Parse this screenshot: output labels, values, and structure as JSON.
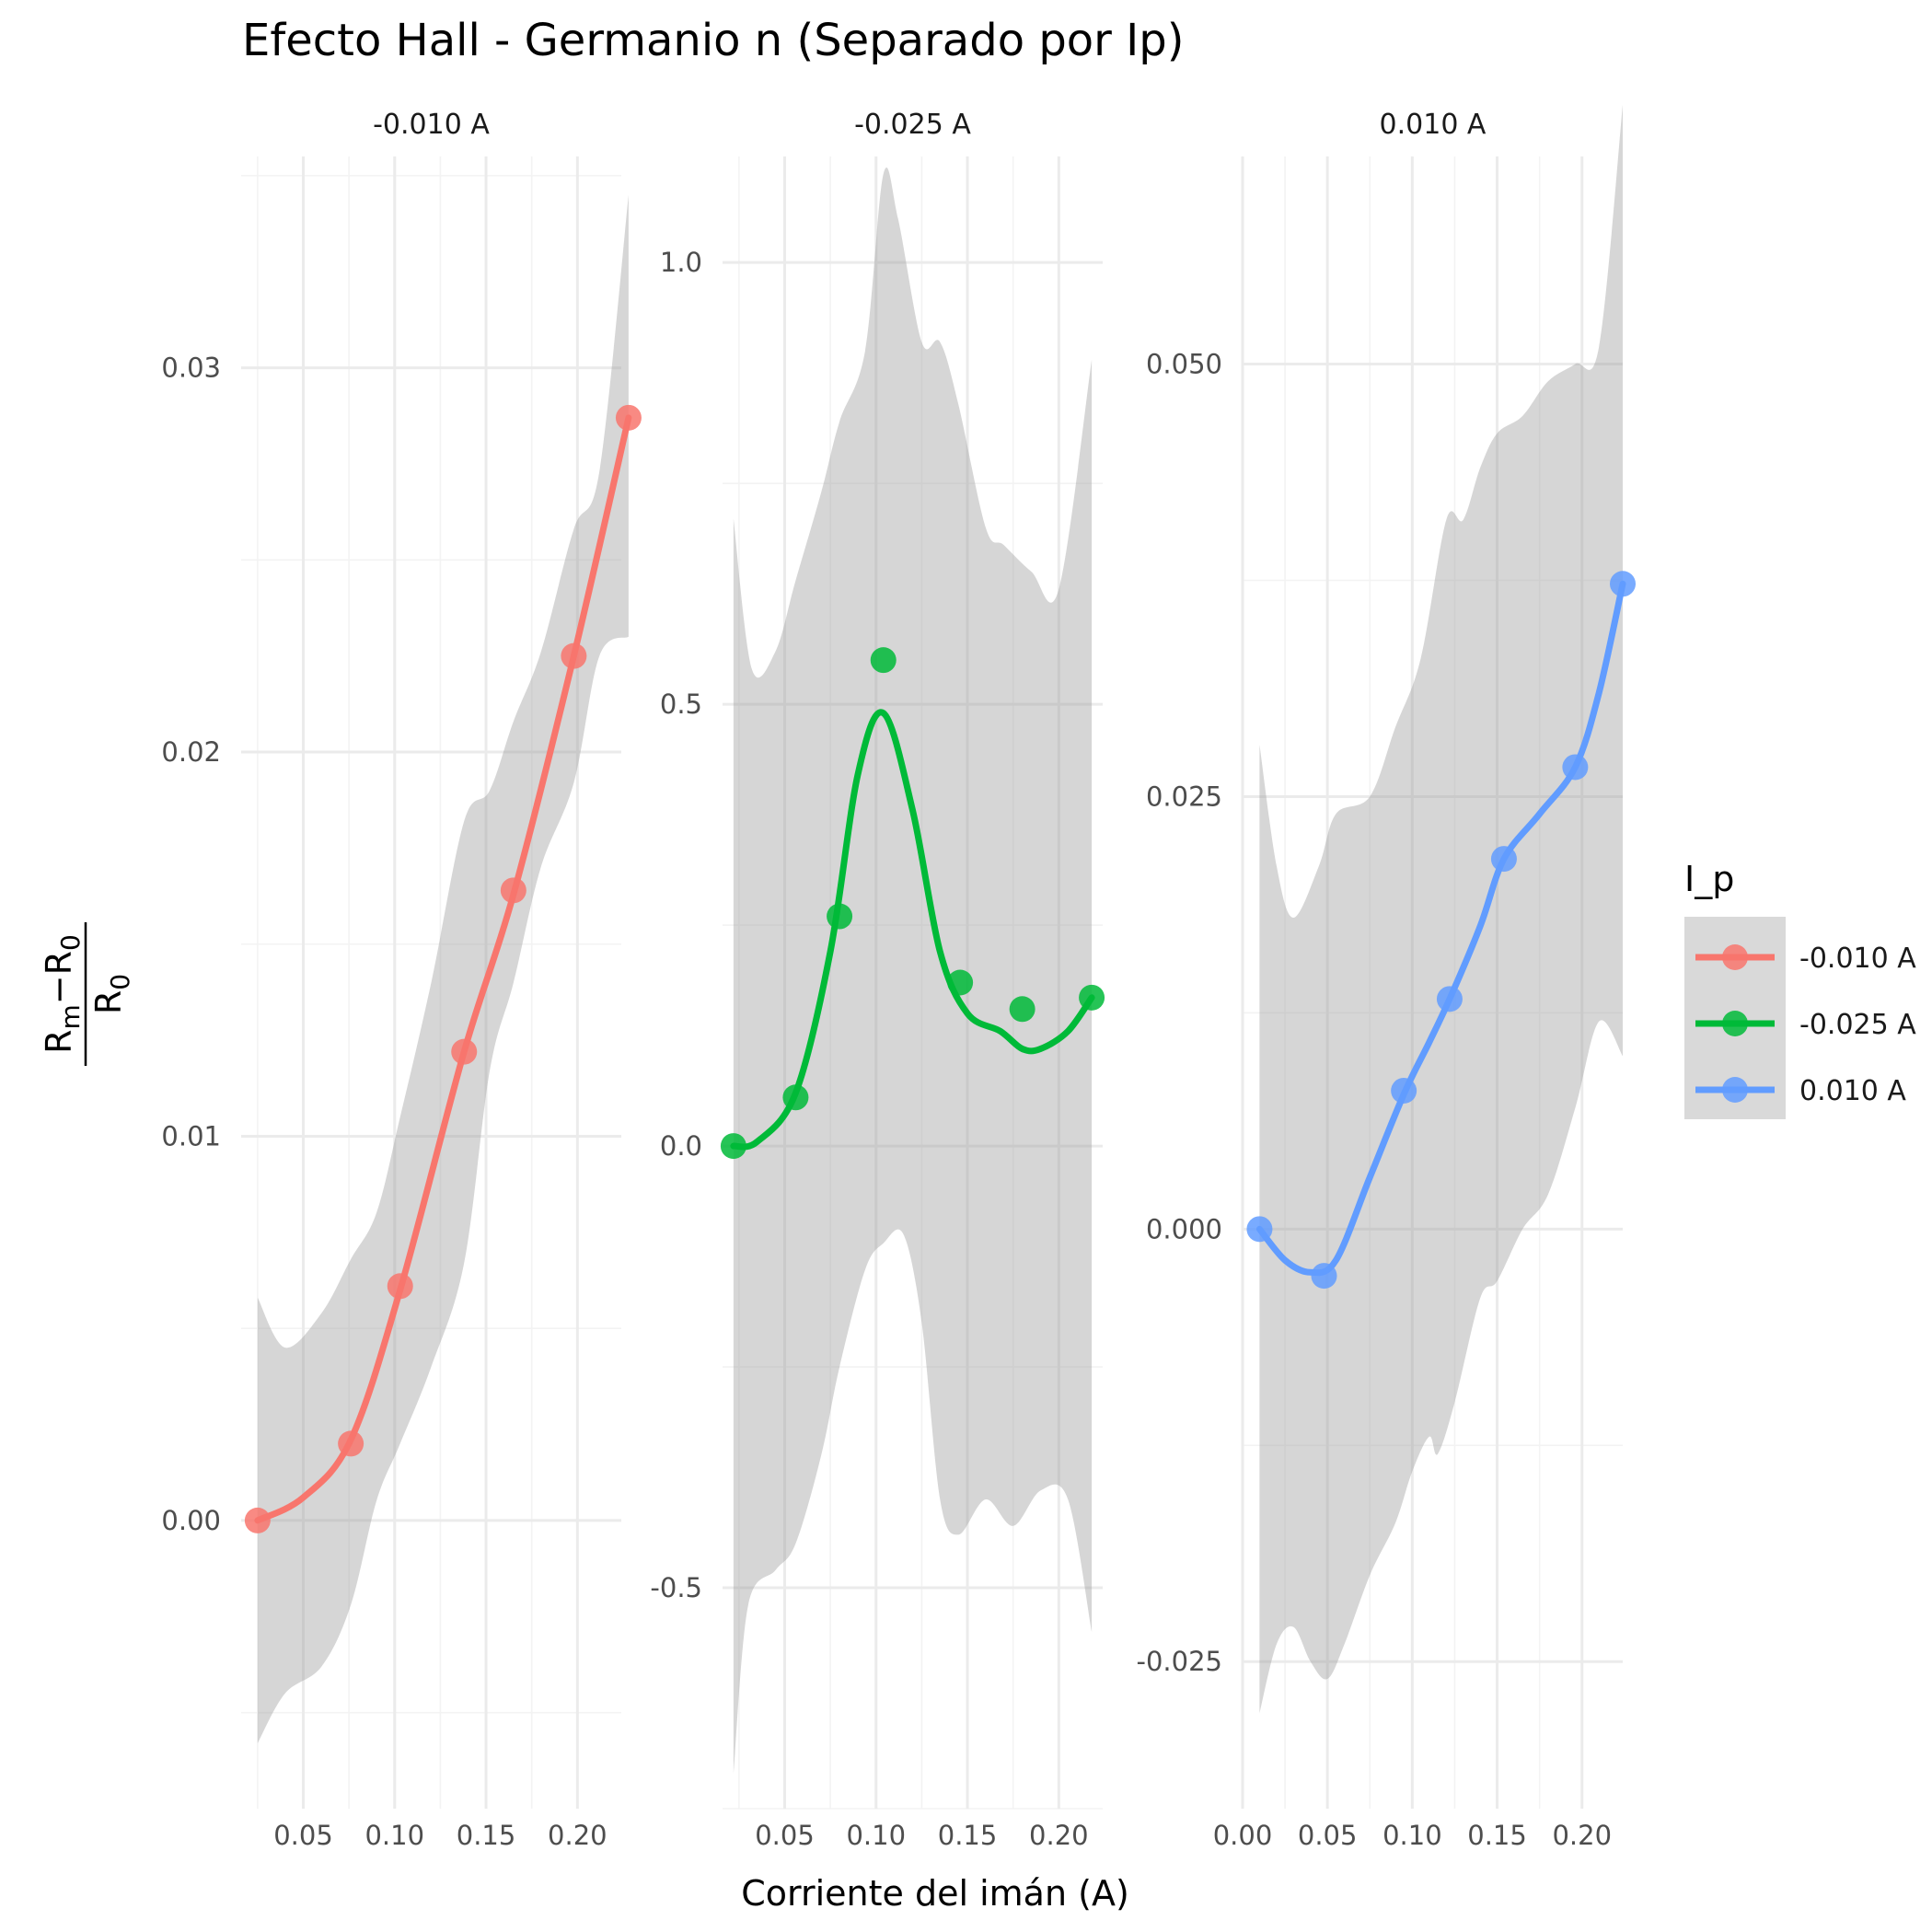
{
  "chart_data": {
    "type": "line",
    "title": "Efecto Hall - Germanio n (Separado por Ip)",
    "xlabel": "Corriente del imán (A)",
    "ylabel": {
      "numerator_main": "R",
      "numerator_sub1": "m",
      "numerator_minus": "−R",
      "numerator_sub2": "0",
      "denominator_main": "R",
      "denominator_sub": "0"
    },
    "legend": {
      "title": "I_p",
      "position": "right",
      "entries": [
        {
          "label": "-0.010 A",
          "color": "#F8766D"
        },
        {
          "label": "-0.025 A",
          "color": "#00BA38"
        },
        {
          "label": "0.010 A",
          "color": "#619CFF"
        }
      ]
    },
    "grid": true,
    "facets": [
      {
        "strip": "-0.010 A",
        "color": "#F8766D",
        "xlim": [
          0.016,
          0.224
        ],
        "ylim": [
          -0.0075,
          0.0355
        ],
        "x_ticks": [
          0.05,
          0.1,
          0.15,
          0.2
        ],
        "x_tick_labels": [
          "0.05",
          "0.10",
          "0.15",
          "0.20"
        ],
        "y_ticks": [
          0.0,
          0.01,
          0.02,
          0.03
        ],
        "y_tick_labels": [
          "0.00",
          "0.01",
          "0.02",
          "0.03"
        ],
        "points": [
          [
            0.025,
            0.0
          ],
          [
            0.076,
            0.002
          ],
          [
            0.103,
            0.0061
          ],
          [
            0.138,
            0.0122
          ],
          [
            0.165,
            0.0164
          ],
          [
            0.198,
            0.0225
          ],
          [
            0.228,
            0.0287
          ]
        ],
        "smooth": [
          [
            0.025,
            0.0
          ],
          [
            0.05,
            0.0006
          ],
          [
            0.076,
            0.0021
          ],
          [
            0.103,
            0.006
          ],
          [
            0.138,
            0.0122
          ],
          [
            0.165,
            0.0163
          ],
          [
            0.198,
            0.0225
          ],
          [
            0.228,
            0.0287
          ]
        ],
        "band_upper": [
          [
            0.025,
            0.0058
          ],
          [
            0.04,
            0.0045
          ],
          [
            0.06,
            0.0054
          ],
          [
            0.076,
            0.0068
          ],
          [
            0.09,
            0.008
          ],
          [
            0.103,
            0.0105
          ],
          [
            0.12,
            0.014
          ],
          [
            0.138,
            0.0182
          ],
          [
            0.152,
            0.019
          ],
          [
            0.165,
            0.0208
          ],
          [
            0.18,
            0.0226
          ],
          [
            0.198,
            0.0258
          ],
          [
            0.212,
            0.0273
          ],
          [
            0.228,
            0.0345
          ]
        ],
        "band_lower": [
          [
            0.025,
            -0.0058
          ],
          [
            0.04,
            -0.0045
          ],
          [
            0.06,
            -0.0038
          ],
          [
            0.076,
            -0.0022
          ],
          [
            0.09,
            0.0005
          ],
          [
            0.103,
            0.002
          ],
          [
            0.12,
            0.004
          ],
          [
            0.138,
            0.0067
          ],
          [
            0.152,
            0.0117
          ],
          [
            0.165,
            0.014
          ],
          [
            0.18,
            0.017
          ],
          [
            0.198,
            0.0192
          ],
          [
            0.212,
            0.0225
          ],
          [
            0.228,
            0.023
          ]
        ]
      },
      {
        "strip": "-0.025 A",
        "color": "#00BA38",
        "xlim": [
          0.016,
          0.224
        ],
        "ylim": [
          -0.75,
          1.12
        ],
        "x_ticks": [
          0.05,
          0.1,
          0.15,
          0.2
        ],
        "x_tick_labels": [
          "0.05",
          "0.10",
          "0.15",
          "0.20"
        ],
        "y_ticks": [
          -0.5,
          0.0,
          0.5,
          1.0
        ],
        "y_tick_labels": [
          "-0.5",
          "0.0",
          "0.5",
          "1.0"
        ],
        "points": [
          [
            0.022,
            0.0
          ],
          [
            0.056,
            0.055
          ],
          [
            0.08,
            0.26
          ],
          [
            0.104,
            0.55
          ],
          [
            0.146,
            0.185
          ],
          [
            0.18,
            0.155
          ],
          [
            0.218,
            0.168
          ]
        ],
        "smooth": [
          [
            0.022,
            0.0
          ],
          [
            0.035,
            0.005
          ],
          [
            0.056,
            0.06
          ],
          [
            0.075,
            0.22
          ],
          [
            0.09,
            0.42
          ],
          [
            0.104,
            0.49
          ],
          [
            0.12,
            0.38
          ],
          [
            0.135,
            0.22
          ],
          [
            0.15,
            0.15
          ],
          [
            0.168,
            0.13
          ],
          [
            0.18,
            0.11
          ],
          [
            0.19,
            0.11
          ],
          [
            0.205,
            0.13
          ],
          [
            0.218,
            0.168
          ]
        ],
        "band_upper": [
          [
            0.022,
            0.71
          ],
          [
            0.032,
            0.54
          ],
          [
            0.045,
            0.56
          ],
          [
            0.056,
            0.64
          ],
          [
            0.07,
            0.74
          ],
          [
            0.08,
            0.82
          ],
          [
            0.094,
            0.9
          ],
          [
            0.104,
            1.1
          ],
          [
            0.112,
            1.05
          ],
          [
            0.125,
            0.91
          ],
          [
            0.135,
            0.91
          ],
          [
            0.145,
            0.84
          ],
          [
            0.16,
            0.7
          ],
          [
            0.17,
            0.68
          ],
          [
            0.185,
            0.65
          ],
          [
            0.2,
            0.63
          ],
          [
            0.218,
            0.89
          ]
        ],
        "band_lower": [
          [
            0.022,
            -0.71
          ],
          [
            0.03,
            -0.52
          ],
          [
            0.045,
            -0.48
          ],
          [
            0.056,
            -0.45
          ],
          [
            0.07,
            -0.35
          ],
          [
            0.08,
            -0.25
          ],
          [
            0.094,
            -0.14
          ],
          [
            0.104,
            -0.11
          ],
          [
            0.115,
            -0.1
          ],
          [
            0.125,
            -0.2
          ],
          [
            0.135,
            -0.4
          ],
          [
            0.145,
            -0.44
          ],
          [
            0.16,
            -0.4
          ],
          [
            0.175,
            -0.43
          ],
          [
            0.19,
            -0.39
          ],
          [
            0.205,
            -0.4
          ],
          [
            0.218,
            -0.55
          ]
        ]
      },
      {
        "strip": "0.010 A",
        "color": "#619CFF",
        "xlim": [
          0.0,
          0.224
        ],
        "ylim": [
          -0.0335,
          0.062
        ],
        "x_ticks": [
          0.0,
          0.05,
          0.1,
          0.15,
          0.2
        ],
        "x_tick_labels": [
          "0.00",
          "0.05",
          "0.10",
          "0.15",
          "0.20"
        ],
        "y_ticks": [
          -0.025,
          0.0,
          0.025,
          0.05
        ],
        "y_tick_labels": [
          "-0.025",
          "0.000",
          "0.025",
          "0.050"
        ],
        "points": [
          [
            0.01,
            0.0
          ],
          [
            0.048,
            -0.0027
          ],
          [
            0.095,
            0.008
          ],
          [
            0.122,
            0.0133
          ],
          [
            0.154,
            0.0214
          ],
          [
            0.196,
            0.0267
          ],
          [
            0.224,
            0.0373
          ]
        ],
        "smooth": [
          [
            0.01,
            0.0
          ],
          [
            0.025,
            -0.0018
          ],
          [
            0.04,
            -0.0025
          ],
          [
            0.055,
            -0.0018
          ],
          [
            0.075,
            0.003
          ],
          [
            0.095,
            0.0078
          ],
          [
            0.11,
            0.0108
          ],
          [
            0.122,
            0.0133
          ],
          [
            0.14,
            0.0175
          ],
          [
            0.154,
            0.0214
          ],
          [
            0.175,
            0.024
          ],
          [
            0.196,
            0.0267
          ],
          [
            0.21,
            0.031
          ],
          [
            0.224,
            0.0373
          ]
        ],
        "band_upper": [
          [
            0.01,
            0.028
          ],
          [
            0.02,
            0.021
          ],
          [
            0.03,
            0.018
          ],
          [
            0.045,
            0.021
          ],
          [
            0.055,
            0.024
          ],
          [
            0.075,
            0.025
          ],
          [
            0.09,
            0.029
          ],
          [
            0.105,
            0.033
          ],
          [
            0.12,
            0.041
          ],
          [
            0.13,
            0.041
          ],
          [
            0.14,
            0.044
          ],
          [
            0.15,
            0.046
          ],
          [
            0.165,
            0.047
          ],
          [
            0.18,
            0.049
          ],
          [
            0.196,
            0.05
          ],
          [
            0.21,
            0.051
          ],
          [
            0.224,
            0.065
          ]
        ],
        "band_lower": [
          [
            0.01,
            -0.028
          ],
          [
            0.02,
            -0.024
          ],
          [
            0.03,
            -0.023
          ],
          [
            0.04,
            -0.025
          ],
          [
            0.05,
            -0.026
          ],
          [
            0.06,
            -0.024
          ],
          [
            0.075,
            -0.02
          ],
          [
            0.09,
            -0.017
          ],
          [
            0.1,
            -0.014
          ],
          [
            0.11,
            -0.012
          ],
          [
            0.115,
            -0.013
          ],
          [
            0.125,
            -0.01
          ],
          [
            0.14,
            -0.004
          ],
          [
            0.15,
            -0.003
          ],
          [
            0.165,
            0.0
          ],
          [
            0.18,
            0.002
          ],
          [
            0.196,
            0.007
          ],
          [
            0.21,
            0.012
          ],
          [
            0.224,
            0.01
          ]
        ]
      }
    ]
  }
}
